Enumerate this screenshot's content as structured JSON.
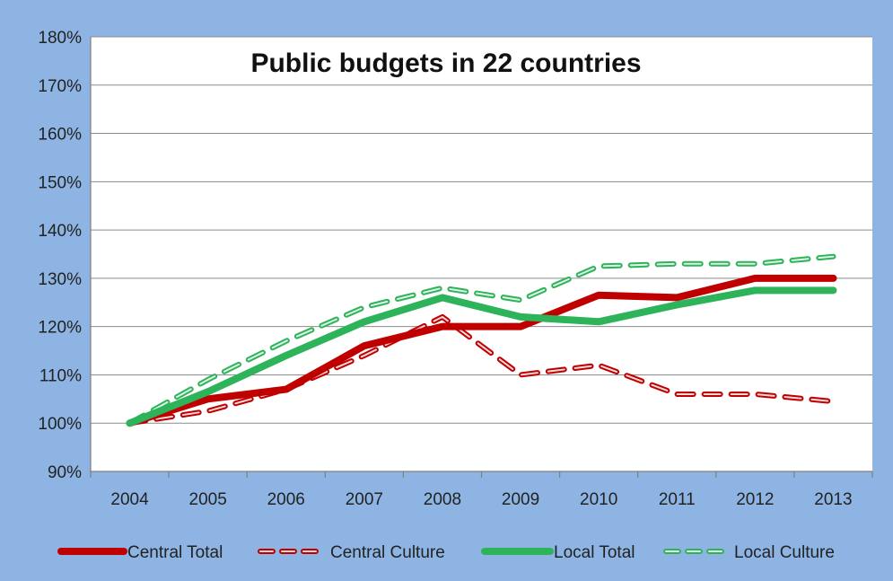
{
  "chart_data": {
    "type": "line",
    "title": "Public budgets in 22 countries",
    "xlabel": "",
    "ylabel": "",
    "ylim": [
      0.9,
      1.8
    ],
    "y_ticks": [
      "90%",
      "100%",
      "110%",
      "120%",
      "130%",
      "140%",
      "150%",
      "160%",
      "170%",
      "180%"
    ],
    "categories": [
      "2004",
      "2005",
      "2006",
      "2007",
      "2008",
      "2009",
      "2010",
      "2011",
      "2012",
      "2013"
    ],
    "grid": true,
    "legend_position": "bottom",
    "series": [
      {
        "name": "Central Total",
        "color": "#c00000",
        "style": "solid",
        "values": [
          1.0,
          1.05,
          1.07,
          1.16,
          1.2,
          1.2,
          1.265,
          1.26,
          1.3,
          1.3
        ]
      },
      {
        "name": "Central Culture",
        "color": "#c00000",
        "style": "dashed",
        "values": [
          1.0,
          1.025,
          1.07,
          1.14,
          1.22,
          1.1,
          1.12,
          1.06,
          1.06,
          1.045
        ]
      },
      {
        "name": "Local Total",
        "color": "#2db35a",
        "style": "solid",
        "values": [
          1.0,
          1.065,
          1.14,
          1.21,
          1.26,
          1.22,
          1.21,
          1.245,
          1.275,
          1.275
        ]
      },
      {
        "name": "Local Culture",
        "color": "#2db35a",
        "style": "dashed",
        "values": [
          1.0,
          1.09,
          1.17,
          1.24,
          1.28,
          1.255,
          1.325,
          1.33,
          1.33,
          1.345
        ]
      }
    ]
  }
}
